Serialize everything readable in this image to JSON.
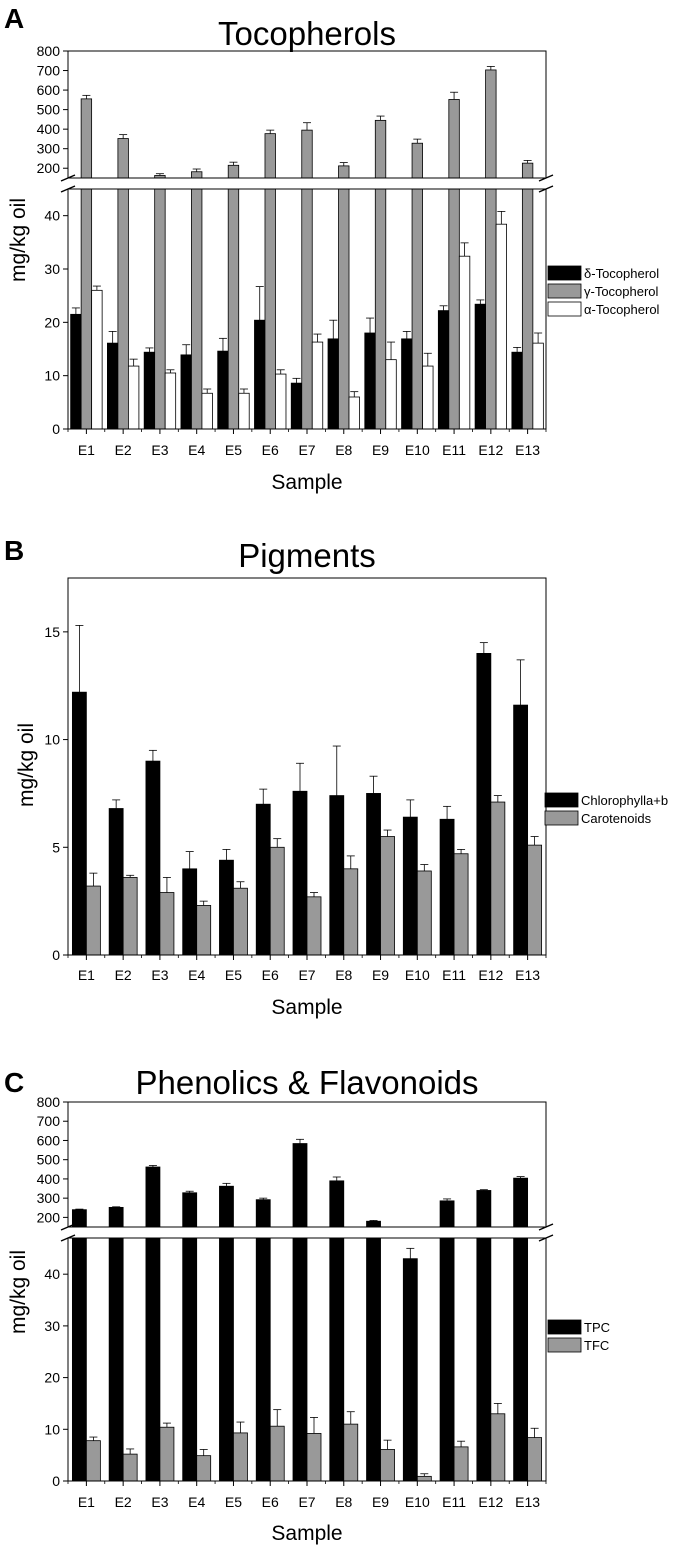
{
  "chart_data": [
    {
      "panel": "A",
      "type": "bar",
      "title": "Tocopherols",
      "xlabel": "Sample",
      "ylabel": "mg/kg oil",
      "categories": [
        "E1",
        "E2",
        "E3",
        "E4",
        "E5",
        "E6",
        "E7",
        "E8",
        "E9",
        "E10",
        "E11",
        "E12",
        "E13"
      ],
      "y_axis_break": true,
      "ylim_lower": [
        0,
        45
      ],
      "ylim_upper": [
        150,
        800
      ],
      "yticks_lower": [
        0,
        10,
        20,
        30,
        40
      ],
      "yticks_upper": [
        200,
        300,
        400,
        500,
        600,
        700,
        800
      ],
      "legend_position": "right",
      "series": [
        {
          "name": "δ-Tocopherol",
          "color": "#000000",
          "values": [
            21.5,
            16.1,
            14.4,
            13.9,
            14.6,
            20.4,
            8.6,
            16.9,
            18.0,
            16.9,
            22.2,
            23.4,
            14.4
          ],
          "errors": [
            1.2,
            2.2,
            0.8,
            1.9,
            2.4,
            6.3,
            0.9,
            3.5,
            2.8,
            1.4,
            0.9,
            0.8,
            0.9
          ]
        },
        {
          "name": "γ-Tocopherol",
          "color": "#999999",
          "values": [
            555,
            352,
            163,
            182,
            215,
            377,
            395,
            212,
            445,
            328,
            552,
            703,
            226
          ],
          "errors": [
            18,
            20,
            9,
            14,
            16,
            18,
            38,
            17,
            22,
            21,
            37,
            18,
            14
          ]
        },
        {
          "name": "α-Tocopherol",
          "color": "#ffffff",
          "values": [
            26.0,
            11.8,
            10.5,
            6.7,
            6.7,
            10.3,
            16.3,
            6.0,
            13.0,
            11.8,
            32.4,
            38.4,
            16.1
          ],
          "errors": [
            0.8,
            1.3,
            0.6,
            0.8,
            0.8,
            0.8,
            1.5,
            1.0,
            3.3,
            2.4,
            2.5,
            2.4,
            1.9
          ]
        }
      ]
    },
    {
      "panel": "B",
      "type": "bar",
      "title": "Pigments",
      "xlabel": "Sample",
      "ylabel": "mg/kg oil",
      "categories": [
        "E1",
        "E2",
        "E3",
        "E4",
        "E5",
        "E6",
        "E7",
        "E8",
        "E9",
        "E10",
        "E11",
        "E12",
        "E13"
      ],
      "ylim": [
        0,
        17.5
      ],
      "yticks": [
        0,
        5,
        10,
        15
      ],
      "legend_position": "right",
      "series": [
        {
          "name": "Chlorophylla+b",
          "color": "#000000",
          "values": [
            12.2,
            6.8,
            9.0,
            4.0,
            4.4,
            7.0,
            7.6,
            7.4,
            7.5,
            6.4,
            6.3,
            14.0,
            11.6
          ],
          "errors": [
            3.1,
            0.4,
            0.5,
            0.8,
            0.5,
            0.7,
            1.3,
            2.3,
            0.8,
            0.8,
            0.6,
            0.5,
            2.1
          ]
        },
        {
          "name": "Carotenoids",
          "color": "#999999",
          "values": [
            3.2,
            3.6,
            2.9,
            2.3,
            3.1,
            5.0,
            2.7,
            4.0,
            5.5,
            3.9,
            4.7,
            7.1,
            5.1
          ],
          "errors": [
            0.6,
            0.1,
            0.7,
            0.2,
            0.3,
            0.4,
            0.2,
            0.6,
            0.3,
            0.3,
            0.2,
            0.3,
            0.4
          ]
        }
      ]
    },
    {
      "panel": "C",
      "type": "bar",
      "title": "Phenolics & Flavonoids",
      "xlabel": "Sample",
      "ylabel": "mg/kg oil",
      "categories": [
        "E1",
        "E2",
        "E3",
        "E4",
        "E5",
        "E6",
        "E7",
        "E8",
        "E9",
        "E10",
        "E11",
        "E12",
        "E13"
      ],
      "y_axis_break": true,
      "ylim_lower": [
        0,
        47
      ],
      "ylim_upper": [
        150,
        800
      ],
      "yticks_lower": [
        0,
        10,
        20,
        30,
        40
      ],
      "yticks_upper": [
        200,
        300,
        400,
        500,
        600,
        700,
        800
      ],
      "legend_position": "right",
      "series": [
        {
          "name": "TPC",
          "color": "#000000",
          "values": [
            240,
            252,
            462,
            328,
            362,
            292,
            584,
            390,
            180,
            43,
            286,
            340,
            404
          ],
          "errors": [
            3,
            3,
            8,
            8,
            15,
            8,
            22,
            20,
            4,
            2.0,
            10,
            4,
            8
          ]
        },
        {
          "name": "TFC",
          "color": "#999999",
          "values": [
            7.8,
            5.2,
            10.4,
            4.9,
            9.3,
            10.6,
            9.2,
            11.0,
            6.1,
            0.9,
            6.6,
            13.0,
            8.4
          ],
          "errors": [
            0.7,
            1.0,
            0.8,
            1.2,
            2.1,
            3.2,
            3.1,
            2.4,
            1.8,
            0.5,
            1.1,
            2.0,
            1.8
          ]
        }
      ]
    }
  ]
}
